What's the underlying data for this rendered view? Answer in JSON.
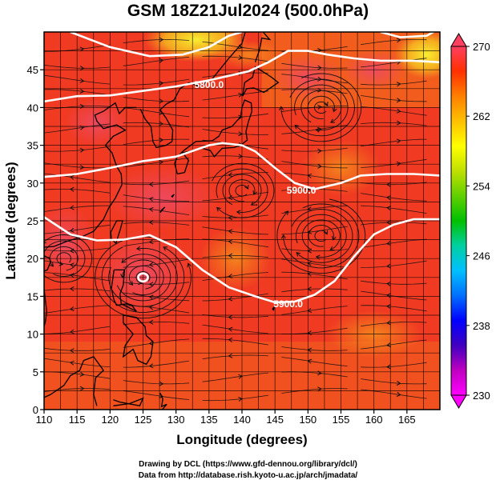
{
  "title": "GSM 18Z21Jul2024 (500.0hPa)",
  "credits": {
    "line1": "Drawing by DCL (https://www.gfd-dennou.org/library/dcl/)",
    "line2": "Data from http://database.rish.kyoto-u.ac.jp/arch/jmadata/"
  },
  "chart_data": {
    "type": "heatmap",
    "title": "GSM 18Z21Jul2024 (500.0hPa)",
    "xlabel": "Longitude (degrees)",
    "ylabel": "Latitude  (degrees)",
    "xlim": [
      110,
      170
    ],
    "ylim": [
      0,
      50
    ],
    "x_ticks": [
      110,
      115,
      120,
      125,
      130,
      135,
      140,
      145,
      150,
      155,
      160,
      165
    ],
    "y_ticks": [
      0,
      5,
      10,
      15,
      20,
      25,
      30,
      35,
      40,
      45
    ],
    "grid": true,
    "colorbar": {
      "min": 230,
      "max": 270,
      "ticks": [
        230,
        238,
        246,
        254,
        262,
        270
      ],
      "colors": [
        "#ff00ff",
        "#c000c0",
        "#4000c0",
        "#0000ff",
        "#0070ff",
        "#00c0ff",
        "#00d0a0",
        "#00c000",
        "#60d000",
        "#c0e000",
        "#ffff00",
        "#ffc000",
        "#ff8000",
        "#ff3000",
        "#ff4060"
      ]
    },
    "contours": [
      {
        "label": "5800.0",
        "label_lon": 135,
        "label_lat": 43
      },
      {
        "label": "5900.0",
        "label_lon": 149,
        "label_lat": 29
      },
      {
        "label": "5900.0",
        "label_lon": 147,
        "label_lat": 14
      }
    ],
    "colors": {
      "warm": "#f03a22",
      "hot": "#ee4a5c",
      "cool": "#f47a1a",
      "coldest": "#f8e82c",
      "contour": "#ffffff"
    }
  }
}
